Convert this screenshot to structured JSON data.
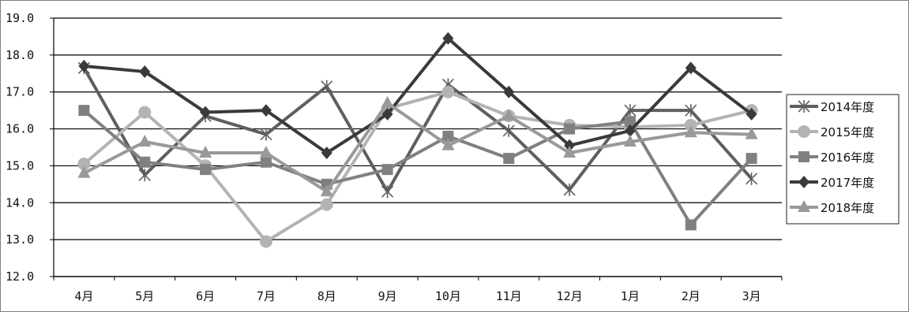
{
  "chart_data": {
    "type": "line",
    "categories": [
      "4月",
      "5月",
      "6月",
      "7月",
      "8月",
      "9月",
      "10月",
      "11月",
      "12月",
      "1月",
      "2月",
      "3月"
    ],
    "ylim": [
      12.0,
      19.0
    ],
    "yticks": [
      "12.0",
      "13.0",
      "14.0",
      "15.0",
      "16.0",
      "17.0",
      "18.0",
      "19.0"
    ],
    "grid": true,
    "legend_position": "right",
    "series": [
      {
        "name": "2014年度",
        "marker": "star",
        "color": "#5f5f5f",
        "values": [
          17.65,
          14.75,
          16.35,
          15.85,
          17.15,
          14.3,
          17.2,
          15.95,
          14.35,
          16.5,
          16.5,
          14.65
        ]
      },
      {
        "name": "2015年度",
        "marker": "circle",
        "color": "#b3b3b3",
        "values": [
          15.05,
          16.45,
          15.0,
          12.95,
          13.95,
          16.55,
          17.0,
          16.35,
          16.1,
          16.05,
          16.1,
          16.5
        ]
      },
      {
        "name": "2016年度",
        "marker": "square",
        "color": "#808080",
        "values": [
          16.5,
          15.1,
          14.9,
          15.1,
          14.5,
          14.9,
          15.8,
          15.2,
          16.0,
          16.2,
          13.4,
          15.2
        ]
      },
      {
        "name": "2017年度",
        "marker": "diamond",
        "color": "#3a3a3a",
        "values": [
          17.7,
          17.55,
          16.45,
          16.5,
          15.35,
          16.4,
          18.45,
          17.0,
          15.55,
          15.95,
          17.65,
          16.4
        ]
      },
      {
        "name": "2018年度",
        "marker": "triangle",
        "color": "#999999",
        "values": [
          14.8,
          15.65,
          15.35,
          15.35,
          14.3,
          16.7,
          15.55,
          16.35,
          15.35,
          15.65,
          15.9,
          15.85
        ]
      }
    ]
  }
}
